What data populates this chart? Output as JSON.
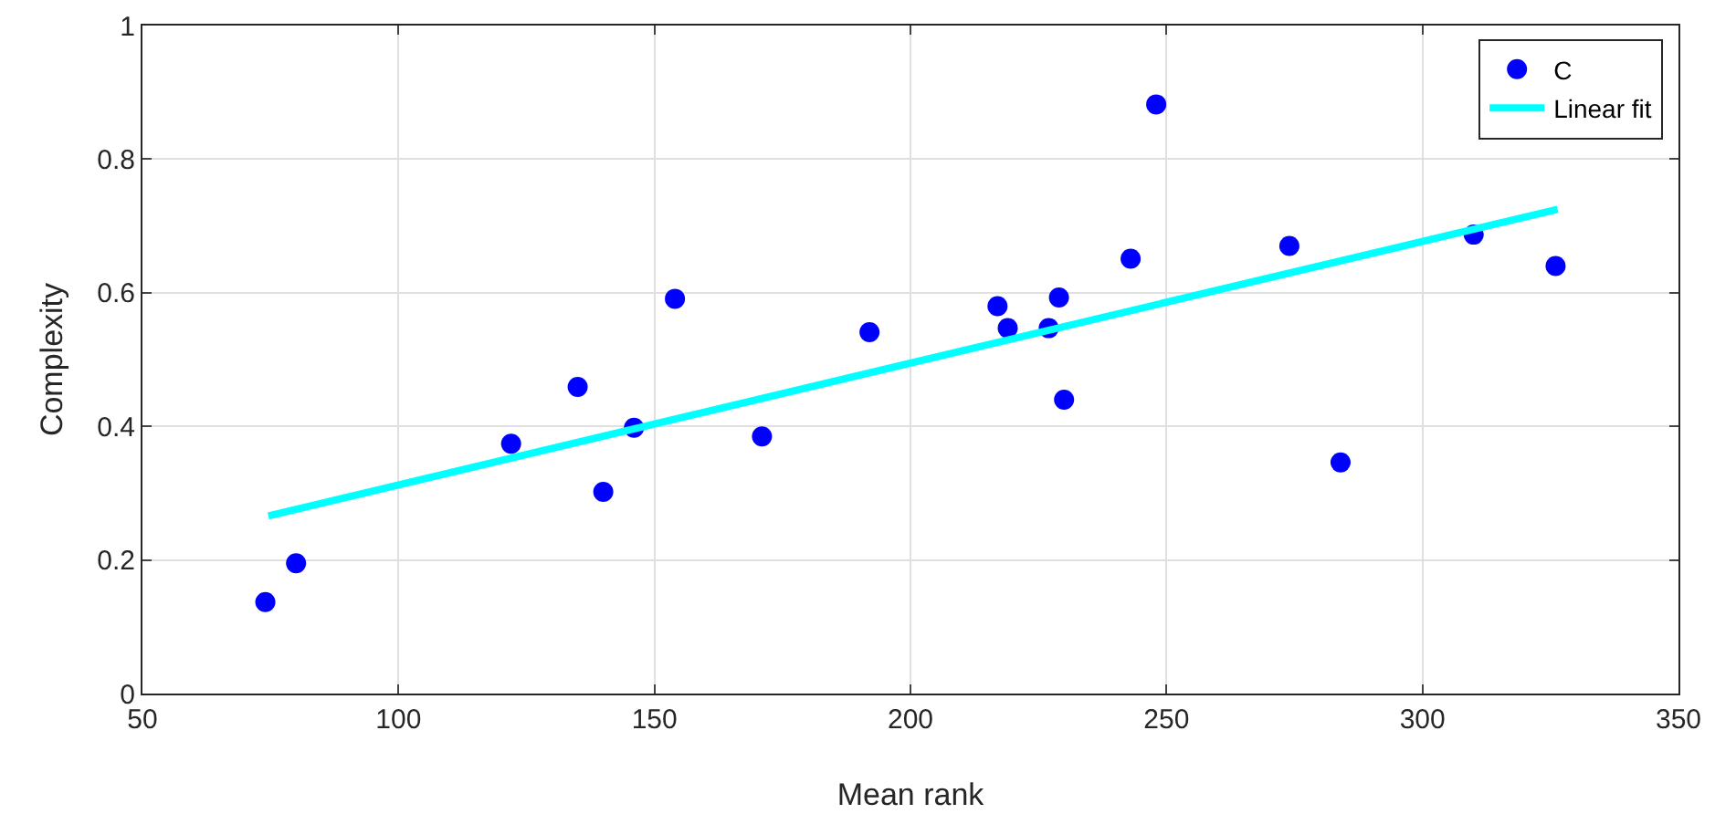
{
  "chart_data": {
    "type": "scatter",
    "xlabel": "Mean rank",
    "ylabel": "Complexity",
    "xlim": [
      50,
      350
    ],
    "xticks": [
      50,
      100,
      150,
      200,
      250,
      300,
      350
    ],
    "ylim": [
      0,
      1
    ],
    "yticks": [
      0,
      0.2,
      0.4,
      0.6,
      0.8,
      1
    ],
    "grid": true,
    "legend": "top right",
    "marker": "circle",
    "series": [
      {
        "name": "C",
        "color": "#0000ff",
        "x": [
          74,
          80,
          122,
          135,
          140,
          146,
          154,
          171,
          192,
          217,
          219,
          227,
          229,
          230,
          243,
          248,
          274,
          284,
          310,
          326
        ],
        "values": [
          0.137,
          0.195,
          0.374,
          0.459,
          0.302,
          0.398,
          0.591,
          0.385,
          0.541,
          0.58,
          0.547,
          0.547,
          0.593,
          0.44,
          0.651,
          0.882,
          0.67,
          0.346,
          0.687,
          0.64
        ]
      },
      {
        "name": "Linear fit",
        "type": "line",
        "color": "#00ffff",
        "line_style": "solid",
        "marker": "none",
        "x": [
          74.6,
          326.4
        ],
        "values": [
          0.266,
          0.725
        ]
      }
    ]
  }
}
